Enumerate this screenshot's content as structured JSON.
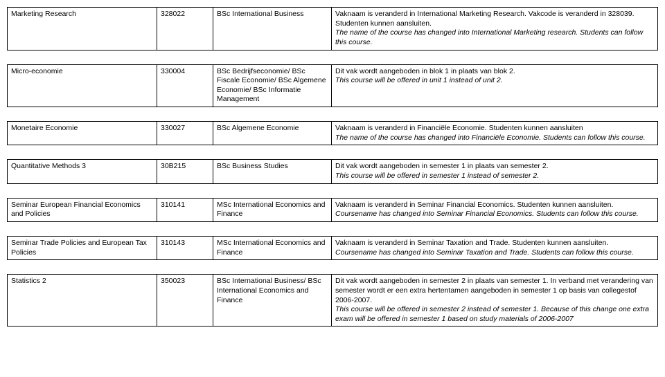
{
  "rows": [
    {
      "c1": "Marketing Research",
      "c2": "328022",
      "c3": "BSc International Business",
      "c4a": "Vaknaam is veranderd in International Marketing Research. Vakcode is veranderd in 328039. Studenten kunnen aansluiten.",
      "c4b": "The name of the course has changed into International Marketing research. Students can follow this course."
    },
    {
      "c1": "Micro-economie",
      "c2": "330004",
      "c3": "BSc Bedrijfseconomie/ BSc Fiscale Economie/ BSc Algemene Economie/ BSc Informatie Management",
      "c4a": "Dit vak wordt aangeboden in blok 1 in plaats van blok 2.",
      "c4b": "This course will be offered in unit 1 instead of unit 2."
    },
    {
      "c1": "Monetaire Economie",
      "c2": "330027",
      "c3": "BSc Algemene Economie",
      "c4a": "Vaknaam is veranderd in Financiële Economie. Studenten kunnen aansluiten",
      "c4b": "The name of the course has changed into Financiële Economie. Students can follow this course."
    },
    {
      "c1": "Quantitative Methods 3",
      "c2": "30B215",
      "c3": "BSc Business Studies",
      "c4a": "Dit vak wordt aangeboden in semester 1 in plaats van semester 2.",
      "c4b": "This course will be offered in semester 1 instead of semester 2."
    },
    {
      "c1": "Seminar European Financial Economics and Policies",
      "c2": "310141",
      "c3": "MSc International Economics and Finance",
      "c4a": "Vaknaam is veranderd in Seminar Financial Economics. Studenten kunnen aansluiten.",
      "c4b": "Coursename has changed into Seminar Financial Economics. Students can follow this course."
    },
    {
      "c1": "Seminar Trade Policies and European Tax Policies",
      "c2": "310143",
      "c3": "MSc International Economics and Finance",
      "c4a": "Vaknaam is veranderd in Seminar Taxation and Trade. Studenten kunnen aansluiten.",
      "c4b": "Coursename has changed into Seminar Taxation and Trade. Students can follow this course."
    },
    {
      "c1": "Statistics 2",
      "c2": "350023",
      "c3": "BSc International Business/ BSc International Economics and Finance",
      "c4a": "Dit vak wordt aangeboden in semester 2 in plaats van semester 1. In verband met verandering van semester wordt er een extra hertentamen aangeboden in semester 1 op basis van collegestof 2006-2007.",
      "c4b": "This course will be offered in semester 2 instead of semester 1. Because of this change one extra exam will be offered in semester 1 based on study materials of 2006-2007"
    }
  ]
}
